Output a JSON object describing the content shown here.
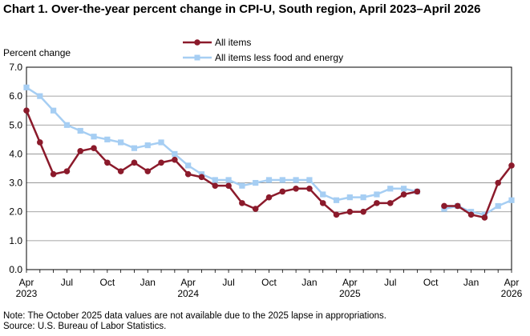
{
  "title": "Chart 1. Over-the-year percent change in CPI-U, South region, April 2023–April 2026",
  "ylabel": "Percent change",
  "footnotes": {
    "note": "Note: The October 2025 data values  are not available  due to the 2025  lapse in appropriations.",
    "source": "Source: U.S. Bureau of Labor Statistics."
  },
  "colors": {
    "all_items": "#8b1a2b",
    "core": "#a6cef3",
    "grid": "#888888",
    "axis": "#000000"
  },
  "chart_data": {
    "type": "line",
    "title": "Chart 1. Over-the-year percent change in CPI-U, South region, April 2023–April 2026",
    "ylabel": "Percent change",
    "xlabel": "",
    "ylim": [
      0,
      7
    ],
    "yticks": [
      "0.0",
      "1.0",
      "2.0",
      "3.0",
      "4.0",
      "5.0",
      "6.0",
      "7.0"
    ],
    "grid": true,
    "legend_position": "top-center",
    "x": [
      "Apr 2023",
      "May 2023",
      "Jun 2023",
      "Jul 2023",
      "Aug 2023",
      "Sep 2023",
      "Oct 2023",
      "Nov 2023",
      "Dec 2023",
      "Jan 2024",
      "Feb 2024",
      "Mar 2024",
      "Apr 2024",
      "May 2024",
      "Jun 2024",
      "Jul 2024",
      "Aug 2024",
      "Sep 2024",
      "Oct 2024",
      "Nov 2024",
      "Dec 2024",
      "Jan 2025",
      "Feb 2025",
      "Mar 2025",
      "Apr 2025",
      "May 2025",
      "Jun 2025",
      "Jul 2025",
      "Aug 2025",
      "Sep 2025",
      "Oct 2025",
      "Nov 2025",
      "Dec 2025",
      "Jan 2026",
      "Feb 2026",
      "Mar 2026",
      "Apr 2026"
    ],
    "xtick_labels": [
      {
        "month": "Apr",
        "year": "2023"
      },
      {
        "month": "Jul",
        "year": ""
      },
      {
        "month": "Oct",
        "year": ""
      },
      {
        "month": "Jan",
        "year": ""
      },
      {
        "month": "Apr",
        "year": "2024"
      },
      {
        "month": "Jul",
        "year": ""
      },
      {
        "month": "Oct",
        "year": ""
      },
      {
        "month": "Jan",
        "year": ""
      },
      {
        "month": "Apr",
        "year": "2025"
      },
      {
        "month": "Jul",
        "year": ""
      },
      {
        "month": "Oct",
        "year": ""
      },
      {
        "month": "Jan",
        "year": ""
      },
      {
        "month": "Apr",
        "year": "2026"
      }
    ],
    "series": [
      {
        "name": "All items",
        "marker": "circle",
        "values": [
          5.5,
          4.4,
          3.3,
          3.4,
          4.1,
          4.2,
          3.7,
          3.4,
          3.7,
          3.4,
          3.7,
          3.8,
          3.3,
          3.2,
          2.9,
          2.9,
          2.3,
          2.1,
          2.5,
          2.7,
          2.8,
          2.8,
          2.3,
          1.9,
          2.0,
          2.0,
          2.3,
          2.3,
          2.6,
          2.7,
          null,
          2.2,
          2.2,
          1.9,
          1.8,
          3.0,
          3.6
        ]
      },
      {
        "name": "All items less food and energy",
        "marker": "square",
        "values": [
          6.3,
          6.0,
          5.5,
          5.0,
          4.8,
          4.6,
          4.5,
          4.4,
          4.2,
          4.3,
          4.4,
          4.0,
          3.6,
          3.3,
          3.1,
          3.1,
          2.9,
          3.0,
          3.1,
          3.1,
          3.1,
          3.1,
          2.6,
          2.4,
          2.5,
          2.5,
          2.6,
          2.8,
          2.8,
          2.7,
          null,
          2.1,
          2.2,
          2.0,
          1.9,
          2.2,
          2.4
        ]
      }
    ]
  }
}
